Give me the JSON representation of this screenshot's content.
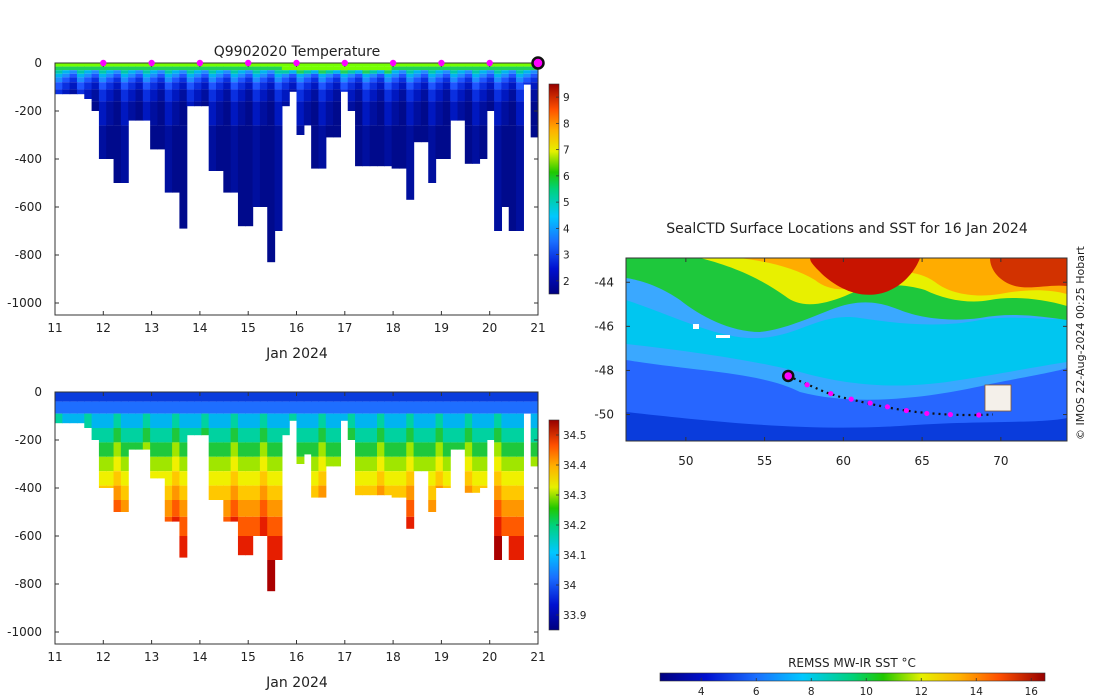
{
  "chart_data": [
    {
      "type": "heatmap",
      "id": "temperature-profile",
      "title": "Q9902020  Temperature",
      "xlabel": "Jan 2024",
      "x_ticks": [
        "11",
        "12",
        "13",
        "14",
        "15",
        "16",
        "17",
        "18",
        "19",
        "20",
        "21"
      ],
      "xlim": [
        11,
        21
      ],
      "y_ticks": [
        "0",
        "-200",
        "-400",
        "-600",
        "-800",
        "-1000"
      ],
      "ylim": [
        -1050,
        0
      ],
      "colorbar": {
        "min": 1.5,
        "max": 9.5,
        "ticks": [
          "2",
          "3",
          "4",
          "5",
          "6",
          "7",
          "8",
          "9"
        ]
      },
      "surface_markers_day": [
        12,
        13,
        14,
        15,
        16,
        17,
        18,
        19,
        20
      ],
      "current_marker_day": 21,
      "profile_depths_m": [
        130,
        130,
        130,
        130,
        150,
        200,
        400,
        400,
        500,
        500,
        240,
        240,
        240,
        360,
        360,
        540,
        540,
        690,
        180,
        180,
        180,
        450,
        450,
        540,
        540,
        680,
        680,
        600,
        600,
        830,
        700,
        180,
        120,
        300,
        260,
        440,
        440,
        310,
        310,
        120,
        200,
        430,
        430,
        430,
        430,
        430,
        440,
        440,
        570,
        330,
        330,
        500,
        400,
        400,
        240,
        240,
        420,
        420,
        400,
        200,
        700,
        600,
        700,
        700,
        90,
        310
      ]
    },
    {
      "type": "heatmap",
      "id": "salinity-profile",
      "title": "",
      "xlabel": "Jan 2024",
      "x_ticks": [
        "11",
        "12",
        "13",
        "14",
        "15",
        "16",
        "17",
        "18",
        "19",
        "20",
        "21"
      ],
      "xlim": [
        11,
        21
      ],
      "y_ticks": [
        "0",
        "-200",
        "-400",
        "-600",
        "-800",
        "-1000"
      ],
      "ylim": [
        -1050,
        0
      ],
      "colorbar": {
        "min": 33.85,
        "max": 34.55,
        "ticks": [
          "33.9",
          "34",
          "34.1",
          "34.2",
          "34.3",
          "34.4",
          "34.5"
        ]
      }
    },
    {
      "type": "heatmap",
      "id": "sst-map",
      "title": "SealCTD Surface Locations and SST for 16 Jan 2024",
      "x_ticks": [
        "50",
        "55",
        "60",
        "65",
        "70"
      ],
      "xlim": [
        46.2,
        74.2
      ],
      "y_ticks": [
        "-44",
        "-46",
        "-48",
        "-50"
      ],
      "ylim": [
        -51.2,
        -42.9
      ],
      "track_lon": [
        56.5,
        57.3,
        58.1,
        58.9,
        59.8,
        60.7,
        61.6,
        62.6,
        63.6,
        64.6,
        65.6,
        66.6,
        67.6,
        68.6,
        69.5
      ],
      "track_lat": [
        -48.25,
        -48.5,
        -48.75,
        -49.0,
        -49.2,
        -49.35,
        -49.5,
        -49.65,
        -49.78,
        -49.88,
        -49.95,
        -50.0,
        -50.02,
        -50.02,
        -50.0
      ],
      "daily_positions": [
        {
          "lon": 57.7,
          "lat": -48.65
        },
        {
          "lon": 59.2,
          "lat": -49.05
        },
        {
          "lon": 60.5,
          "lat": -49.3
        },
        {
          "lon": 61.7,
          "lat": -49.48
        },
        {
          "lon": 62.8,
          "lat": -49.65
        },
        {
          "lon": 64.0,
          "lat": -49.82
        },
        {
          "lon": 65.3,
          "lat": -49.95
        },
        {
          "lon": 66.8,
          "lat": -50.0
        },
        {
          "lon": 68.6,
          "lat": -50.02
        }
      ],
      "current_position": {
        "lon": 56.5,
        "lat": -48.25
      },
      "colorbar": {
        "label": "REMSS MW-IR SST °C",
        "min": 2.5,
        "max": 16.5,
        "ticks": [
          "4",
          "6",
          "8",
          "10",
          "12",
          "14",
          "16"
        ]
      }
    }
  ],
  "credit": "© IMOS 22-Aug-2024 00:25 Hobart",
  "colors": {
    "marker_magenta": "#ff00ff",
    "marker_ring": "#111111",
    "track": "#111111"
  }
}
